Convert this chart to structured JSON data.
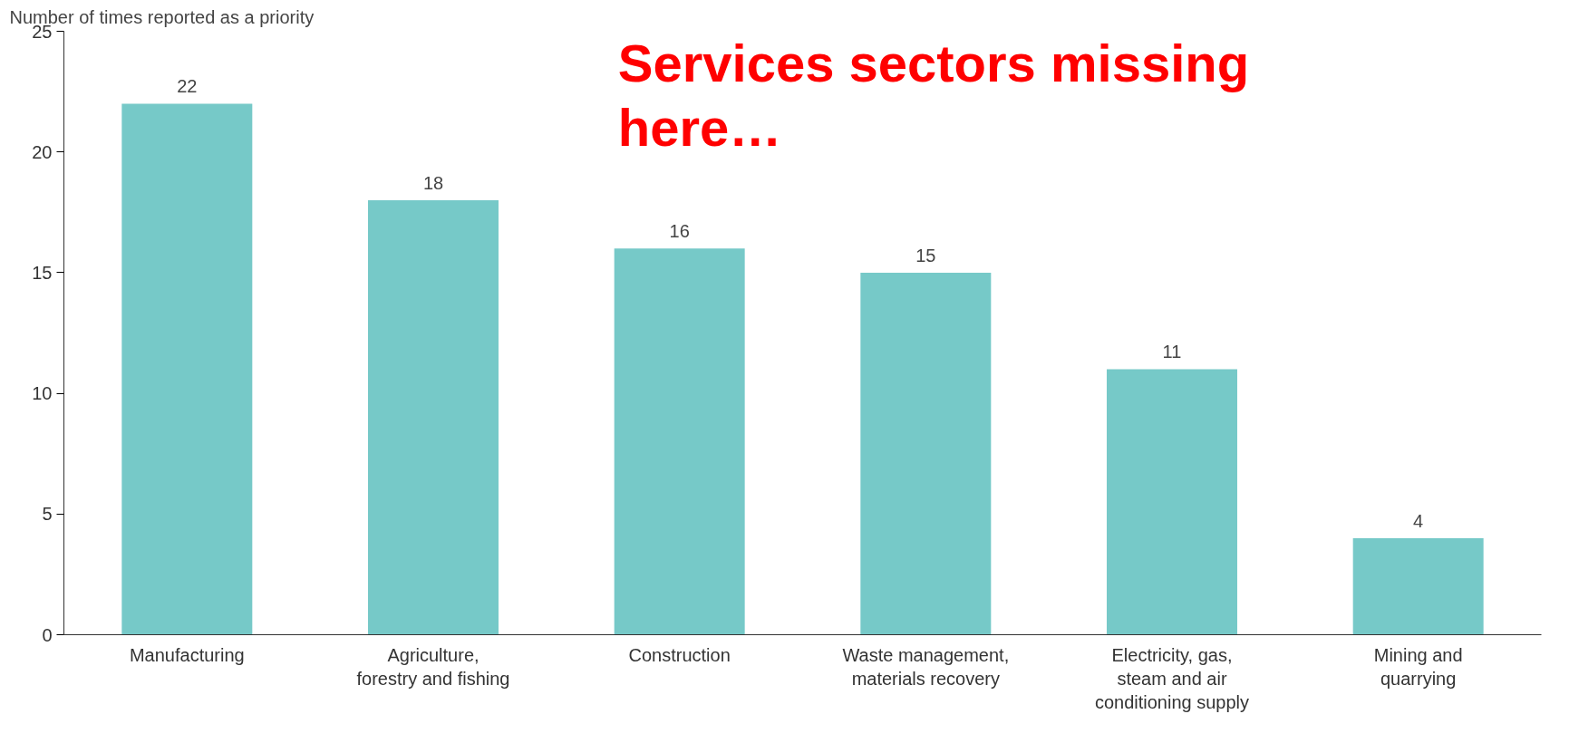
{
  "chart_data": {
    "type": "bar",
    "ylabel": "Number of times reported as a priority",
    "categories": [
      "Manufacturing",
      "Agriculture,\nforestry and fishing",
      "Construction",
      "Waste management,\nmaterials recovery",
      "Electricity, gas,\nsteam and air\nconditioning supply",
      "Mining and\nquarrying"
    ],
    "values": [
      22,
      18,
      16,
      15,
      11,
      4
    ],
    "color": "#76c9c8",
    "ylim": [
      0,
      25
    ],
    "yticks": [
      0,
      5,
      10,
      15,
      20,
      25
    ],
    "grid": false,
    "data_labels": true,
    "annotations": [
      "Services sectors missing\nhere…"
    ]
  }
}
